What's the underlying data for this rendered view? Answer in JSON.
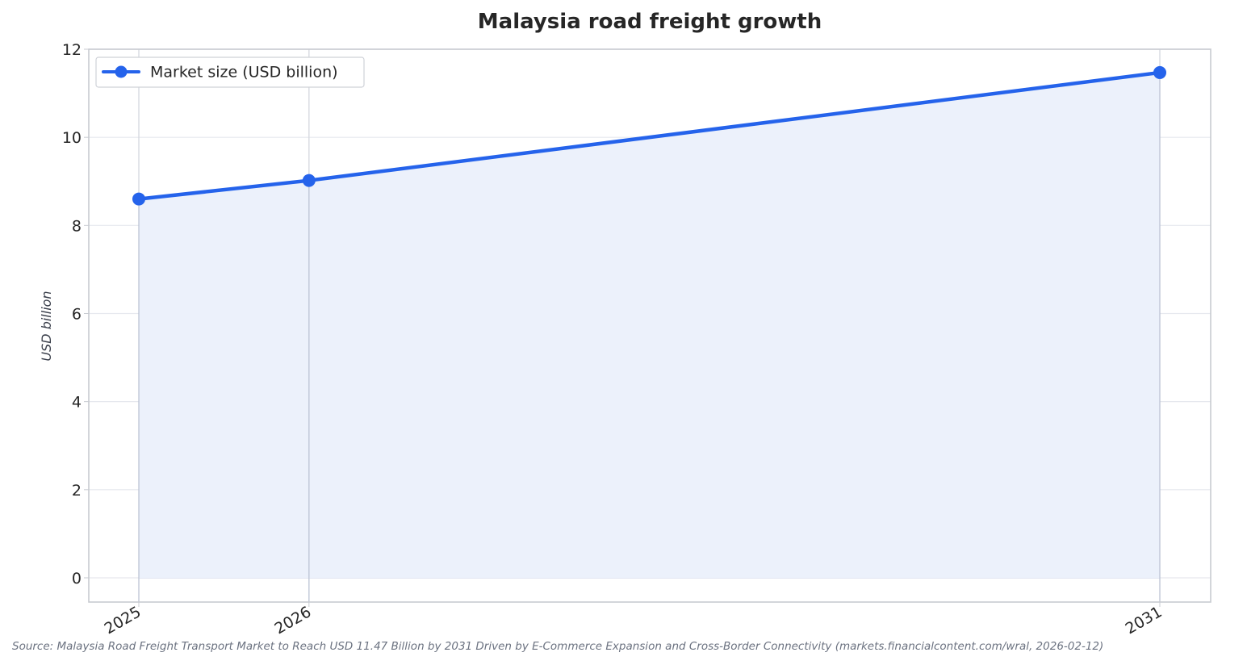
{
  "chart_data": {
    "type": "area",
    "title": "Malaysia road freight growth",
    "xlabel": "",
    "ylabel": "USD billion",
    "categories": [
      "2025",
      "2026",
      "2031"
    ],
    "series": [
      {
        "name": "Market size (USD billion)",
        "values": [
          8.6,
          9.02,
          11.47
        ]
      }
    ],
    "ylim": [
      -0.55,
      12
    ],
    "yticks": [
      0,
      2,
      4,
      6,
      8,
      10,
      12
    ],
    "grid": true,
    "legend_position": "top-left",
    "line_color": "#2563eb",
    "fill_color": "#ecf1fb",
    "source": "Source: Malaysia Road Freight Transport Market to Reach USD 11.47 Billion by 2031 Driven by E-Commerce Expansion and Cross-Border Connectivity (markets.financialcontent.com/wral, 2026-02-12)"
  }
}
